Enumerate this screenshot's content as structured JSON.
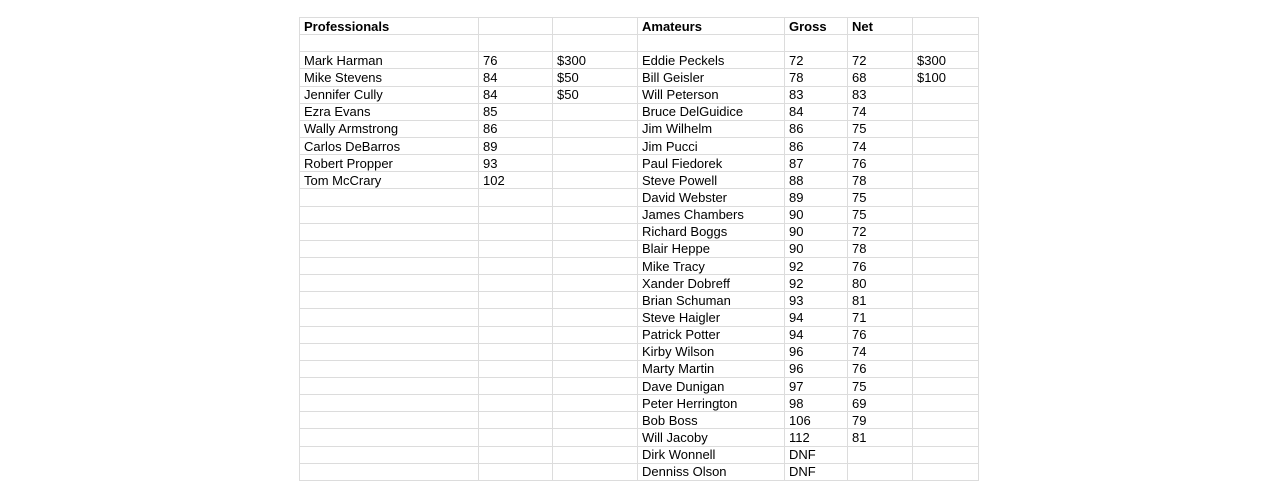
{
  "table": {
    "headers": {
      "professionals": "Professionals",
      "amateurs": "Amateurs",
      "gross": "Gross",
      "net": "Net"
    },
    "professionals": [
      {
        "name": "Mark Harman",
        "score": "76",
        "prize": "$300"
      },
      {
        "name": "Mike Stevens",
        "score": "84",
        "prize": "$50"
      },
      {
        "name": "Jennifer Cully",
        "score": "84",
        "prize": "$50"
      },
      {
        "name": "Ezra Evans",
        "score": "85",
        "prize": ""
      },
      {
        "name": "Wally Armstrong",
        "score": "86",
        "prize": ""
      },
      {
        "name": "Carlos DeBarros",
        "score": "89",
        "prize": ""
      },
      {
        "name": "Robert Propper",
        "score": "93",
        "prize": ""
      },
      {
        "name": "Tom McCrary",
        "score": "102",
        "prize": ""
      }
    ],
    "amateurs": [
      {
        "name": "Eddie Peckels",
        "gross": "72",
        "net": "72",
        "prize": "$300"
      },
      {
        "name": "Bill Geisler",
        "gross": "78",
        "net": "68",
        "prize": "$100"
      },
      {
        "name": "Will Peterson",
        "gross": "83",
        "net": "83",
        "prize": ""
      },
      {
        "name": "Bruce DelGuidice",
        "gross": "84",
        "net": "74",
        "prize": ""
      },
      {
        "name": "Jim Wilhelm",
        "gross": "86",
        "net": "75",
        "prize": ""
      },
      {
        "name": "Jim Pucci",
        "gross": "86",
        "net": "74",
        "prize": ""
      },
      {
        "name": "Paul Fiedorek",
        "gross": "87",
        "net": "76",
        "prize": ""
      },
      {
        "name": "Steve Powell",
        "gross": "88",
        "net": "78",
        "prize": ""
      },
      {
        "name": "David Webster",
        "gross": "89",
        "net": "75",
        "prize": ""
      },
      {
        "name": "James Chambers",
        "gross": "90",
        "net": "75",
        "prize": ""
      },
      {
        "name": "Richard Boggs",
        "gross": "90",
        "net": "72",
        "prize": ""
      },
      {
        "name": "Blair Heppe",
        "gross": "90",
        "net": "78",
        "prize": ""
      },
      {
        "name": "Mike Tracy",
        "gross": "92",
        "net": "76",
        "prize": ""
      },
      {
        "name": "Xander Dobreff",
        "gross": "92",
        "net": "80",
        "prize": ""
      },
      {
        "name": "Brian Schuman",
        "gross": "93",
        "net": "81",
        "prize": ""
      },
      {
        "name": "Steve Haigler",
        "gross": "94",
        "net": "71",
        "prize": ""
      },
      {
        "name": "Patrick Potter",
        "gross": "94",
        "net": "76",
        "prize": ""
      },
      {
        "name": "Kirby Wilson",
        "gross": "96",
        "net": "74",
        "prize": ""
      },
      {
        "name": "Marty Martin",
        "gross": "96",
        "net": "76",
        "prize": ""
      },
      {
        "name": "Dave Dunigan",
        "gross": "97",
        "net": "75",
        "prize": ""
      },
      {
        "name": "Peter Herrington",
        "gross": "98",
        "net": "69",
        "prize": ""
      },
      {
        "name": "Bob Boss",
        "gross": "106",
        "net": "79",
        "prize": ""
      },
      {
        "name": "Will Jacoby",
        "gross": "112",
        "net": "81",
        "prize": ""
      },
      {
        "name": "Dirk Wonnell",
        "gross": "DNF",
        "net": "",
        "prize": ""
      },
      {
        "name": "Denniss Olson",
        "gross": "DNF",
        "net": "",
        "prize": ""
      }
    ]
  },
  "colors": {
    "gridline": "#dcdcdc",
    "text": "#000000",
    "background": "#ffffff"
  }
}
